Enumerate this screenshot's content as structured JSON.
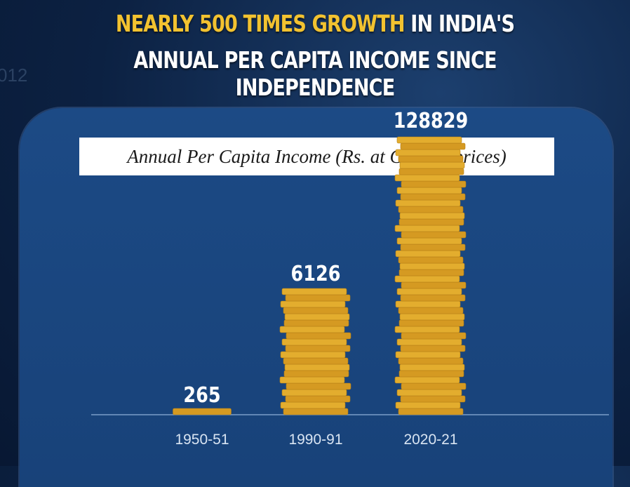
{
  "header": {
    "line1_highlight": "NEARLY 500 TIMES GROWTH",
    "line1_rest": " IN INDIA'S",
    "line2": "ANNUAL PER CAPITA INCOME SINCE INDEPENDENCE"
  },
  "colors": {
    "highlight": "#f2c230",
    "coin": "#e0a92c",
    "panel": "#1c4a85",
    "background": "#0c2142"
  },
  "chart_data": {
    "type": "bar",
    "title": "Annual Per Capita Income (Rs. at Current prices)",
    "categories": [
      "1950-51",
      "1990-91",
      "2020-21"
    ],
    "values": [
      265,
      6126,
      128829
    ],
    "data_labels": [
      "265",
      "6126",
      "128829"
    ],
    "bar_style": "coin-stacks",
    "grid": false,
    "axis_scale": "not-to-scale"
  }
}
